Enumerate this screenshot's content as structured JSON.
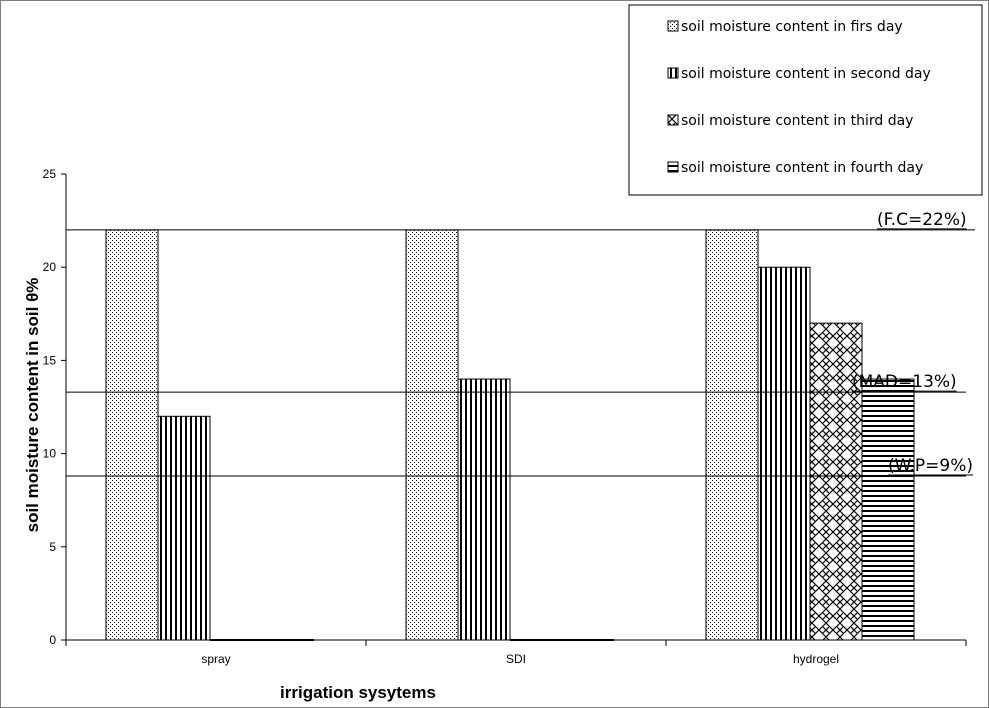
{
  "chart_data": {
    "type": "bar",
    "xlabel": "irrigation sysytems",
    "ylabel": "soil moisture content in soil θ%",
    "ylim": [
      0,
      25
    ],
    "yticks": [
      "0",
      "5",
      "10",
      "15",
      "20",
      "25"
    ],
    "categories": [
      "spray",
      "SDI",
      "hydrogel"
    ],
    "series": [
      {
        "name": "soil moisture content in firs day",
        "pattern": "dots",
        "values": [
          22,
          22,
          22
        ]
      },
      {
        "name": "soil moisture content in second day",
        "pattern": "vertical-lines",
        "values": [
          12,
          14,
          20
        ]
      },
      {
        "name": "soil moisture content in third day",
        "pattern": "diamond-grid",
        "values": [
          0,
          0,
          17
        ]
      },
      {
        "name": "soil moisture content in fourth day",
        "pattern": "horizontal-lines",
        "values": [
          0,
          0,
          14
        ]
      }
    ],
    "reference_lines": [
      {
        "label": "(F.C=22%)",
        "value": 22
      },
      {
        "label": "(MAD=13%)",
        "value": 13.3
      },
      {
        "label": "(W.P=9%)",
        "value": 8.8
      }
    ],
    "legend_position": "top-right",
    "grid": false
  }
}
